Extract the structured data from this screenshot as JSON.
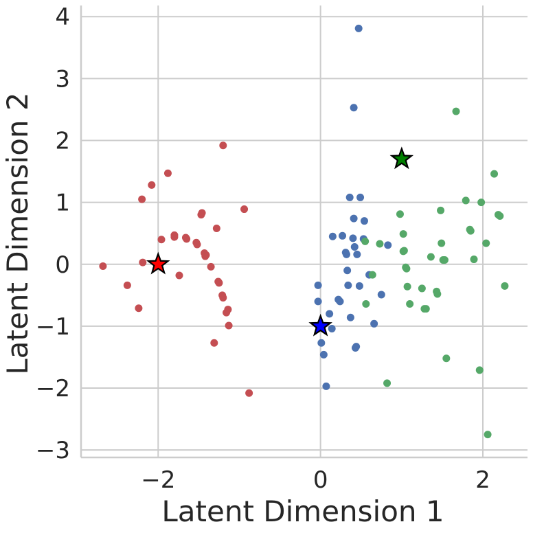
{
  "chart_data": {
    "type": "scatter",
    "title": "",
    "xlabel": "Latent Dimension 1",
    "ylabel": "Latent Dimension 2",
    "xlim": [
      -2.95,
      2.55
    ],
    "ylim": [
      -3.12,
      4.18
    ],
    "xticks": [
      -2,
      0,
      2
    ],
    "xtick_labels": [
      "−2",
      "0",
      "2"
    ],
    "yticks": [
      -3,
      -2,
      -1,
      0,
      1,
      2,
      3,
      4
    ],
    "ytick_labels": [
      "−3",
      "−2",
      "−1",
      "0",
      "1",
      "2",
      "3",
      "4"
    ],
    "grid": true,
    "legend": "none",
    "series": [
      {
        "color": "#c44e52",
        "points": [
          [
            -2.68,
            -0.03
          ],
          [
            -2.38,
            -0.34
          ],
          [
            -2.24,
            -0.71
          ],
          [
            -2.2,
            1.05
          ],
          [
            -2.19,
            0.03
          ],
          [
            -2.08,
            1.28
          ],
          [
            -1.96,
            0.4
          ],
          [
            -1.88,
            1.47
          ],
          [
            -1.8,
            0.47
          ],
          [
            -1.8,
            0.44
          ],
          [
            -1.74,
            -0.18
          ],
          [
            -1.66,
            0.43
          ],
          [
            -1.65,
            0.41
          ],
          [
            -1.53,
            0.35
          ],
          [
            -1.52,
            0.32
          ],
          [
            -1.47,
            0.8
          ],
          [
            -1.46,
            0.83
          ],
          [
            -1.43,
            0.18
          ],
          [
            -1.42,
            0.13
          ],
          [
            -1.41,
            0.15
          ],
          [
            -1.35,
            -0.04
          ],
          [
            -1.31,
            -1.27
          ],
          [
            -1.28,
            0.58
          ],
          [
            -1.26,
            -0.28
          ],
          [
            -1.25,
            -0.3
          ],
          [
            -1.21,
            -0.5
          ],
          [
            -1.2,
            -0.54
          ],
          [
            -1.2,
            1.92
          ],
          [
            -1.16,
            -0.78
          ],
          [
            -1.14,
            -0.73
          ],
          [
            -1.13,
            -0.99
          ],
          [
            -0.94,
            0.89
          ],
          [
            -0.88,
            -2.08
          ]
        ]
      },
      {
        "color": "#4c72b0",
        "points": [
          [
            -0.03,
            -0.34
          ],
          [
            -0.03,
            -0.6
          ],
          [
            0.01,
            -1.27
          ],
          [
            0.04,
            -1.46
          ],
          [
            0.07,
            -1.97
          ],
          [
            0.11,
            -0.8
          ],
          [
            0.14,
            -1.04
          ],
          [
            0.15,
            0.45
          ],
          [
            0.22,
            -0.57
          ],
          [
            0.24,
            -0.6
          ],
          [
            0.27,
            0.46
          ],
          [
            0.31,
            0.19
          ],
          [
            0.32,
            0.16
          ],
          [
            0.33,
            -0.1
          ],
          [
            0.34,
            -0.34
          ],
          [
            0.36,
            1.08
          ],
          [
            0.37,
            -0.86
          ],
          [
            0.4,
            0.42
          ],
          [
            0.41,
            0.74
          ],
          [
            0.41,
            2.53
          ],
          [
            0.42,
            0.28
          ],
          [
            0.43,
            -1.35
          ],
          [
            0.44,
            -1.33
          ],
          [
            0.45,
            0.16
          ],
          [
            0.47,
            3.81
          ],
          [
            0.48,
            -0.35
          ],
          [
            0.49,
            1.08
          ],
          [
            0.53,
            0.41
          ],
          [
            0.54,
            0.7
          ],
          [
            0.6,
            -0.17
          ],
          [
            0.66,
            -0.96
          ],
          [
            0.75,
            -0.49
          ],
          [
            0.83,
            0.31
          ]
        ]
      },
      {
        "color": "#55a868",
        "points": [
          [
            0.55,
            0.37
          ],
          [
            0.56,
            -0.64
          ],
          [
            0.64,
            -0.17
          ],
          [
            0.73,
            0.33
          ],
          [
            0.82,
            -1.92
          ],
          [
            0.98,
            0.81
          ],
          [
            1.02,
            0.49
          ],
          [
            1.02,
            0.21
          ],
          [
            1.03,
            0.22
          ],
          [
            1.05,
            -0.05
          ],
          [
            1.06,
            -0.07
          ],
          [
            1.07,
            -0.36
          ],
          [
            1.1,
            -0.64
          ],
          [
            1.25,
            -0.39
          ],
          [
            1.28,
            -0.72
          ],
          [
            1.3,
            -0.72
          ],
          [
            1.36,
            0.12
          ],
          [
            1.43,
            -0.44
          ],
          [
            1.44,
            -0.48
          ],
          [
            1.48,
            0.87
          ],
          [
            1.49,
            0.34
          ],
          [
            1.51,
            0.07
          ],
          [
            1.53,
            0.07
          ],
          [
            1.55,
            -1.52
          ],
          [
            1.67,
            2.47
          ],
          [
            1.79,
            1.03
          ],
          [
            1.84,
            0.56
          ],
          [
            1.85,
            0.54
          ],
          [
            1.89,
            0.08
          ],
          [
            1.96,
            -1.71
          ],
          [
            1.98,
            1.0
          ],
          [
            2.04,
            0.34
          ],
          [
            2.06,
            -2.75
          ],
          [
            2.14,
            1.46
          ],
          [
            2.19,
            0.8
          ],
          [
            2.21,
            0.78
          ],
          [
            2.27,
            -0.35
          ]
        ]
      }
    ],
    "centroids": [
      {
        "x": -2,
        "y": 0,
        "color": "#ff0000"
      },
      {
        "x": 0,
        "y": -1,
        "color": "#0000ff"
      },
      {
        "x": 1,
        "y": 1.7,
        "color": "#008000"
      }
    ]
  }
}
